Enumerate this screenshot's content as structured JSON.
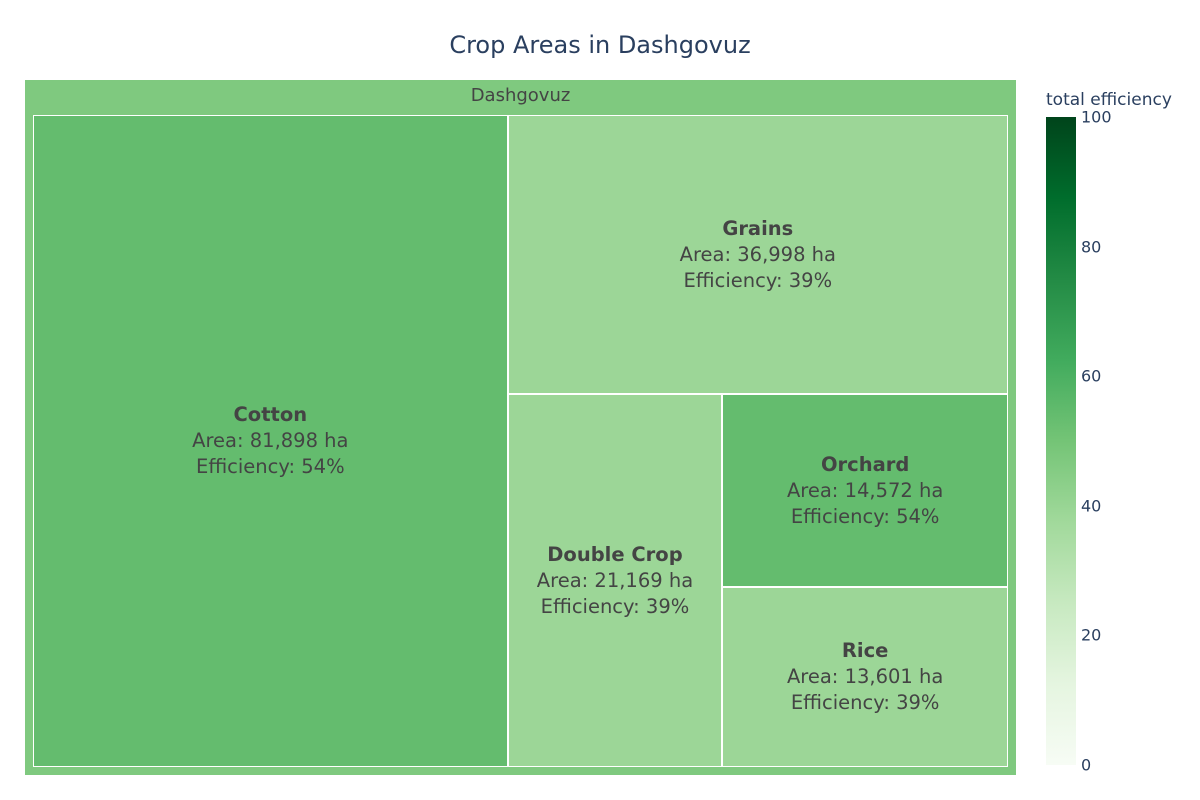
{
  "title": "Crop Areas in Dashgovuz",
  "chart_data": {
    "type": "treemap",
    "title": "Crop Areas in Dashgovuz",
    "root": {
      "label": "Dashgovuz"
    },
    "children": [
      {
        "name": "Cotton",
        "area": 81898,
        "efficiency": 54,
        "area_text": "Area: 81,898 ha",
        "efficiency_text": "Efficiency: 54%"
      },
      {
        "name": "Grains",
        "area": 36998,
        "efficiency": 39,
        "area_text": "Area: 36,998 ha",
        "efficiency_text": "Efficiency: 39%"
      },
      {
        "name": "Double Crop",
        "area": 21169,
        "efficiency": 39,
        "area_text": "Area: 21,169 ha",
        "efficiency_text": "Efficiency: 39%"
      },
      {
        "name": "Orchard",
        "area": 14572,
        "efficiency": 54,
        "area_text": "Area: 14,572 ha",
        "efficiency_text": "Efficiency: 54%"
      },
      {
        "name": "Rice",
        "area": 13601,
        "efficiency": 39,
        "area_text": "Area: 13,601 ha",
        "efficiency_text": "Efficiency: 39%"
      }
    ],
    "colorbar": {
      "title": "total efficiency",
      "range": [
        0,
        100
      ],
      "ticks": [
        "0",
        "20",
        "40",
        "60",
        "80",
        "100"
      ]
    },
    "colors": {
      "root": "#7fc97f",
      "scale": [
        "#f7fcf5",
        "#e5f5e0",
        "#c7e9c0",
        "#a1d99b",
        "#74c476",
        "#41ab5d",
        "#238b45",
        "#006d2c",
        "#00441b"
      ]
    }
  }
}
